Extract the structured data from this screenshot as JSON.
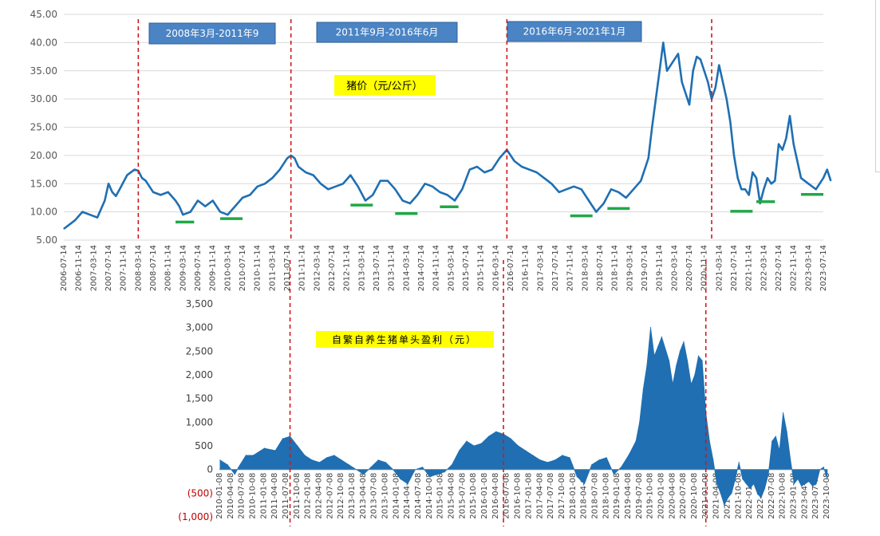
{
  "chart_data": [
    {
      "type": "line",
      "title": "",
      "label_box": "猪价（元/公斤）",
      "ylim": [
        5,
        45
      ],
      "yticks": [
        "5.00",
        "10.00",
        "15.00",
        "20.00",
        "25.00",
        "30.00",
        "35.00",
        "40.00",
        "45.00"
      ],
      "grid": true,
      "xticks": [
        "2006-07-14",
        "2006-11-14",
        "2007-03-14",
        "2007-07-14",
        "2007-11-14",
        "2008-03-14",
        "2008-07-14",
        "2008-11-14",
        "2009-03-14",
        "2009-07-14",
        "2009-11-14",
        "2010-03-14",
        "2010-07-14",
        "2010-11-14",
        "2011-03-14",
        "2011-07-14",
        "2011-11-14",
        "2012-03-14",
        "2012-07-14",
        "2012-11-14",
        "2013-03-14",
        "2013-07-14",
        "2013-11-14",
        "2014-03-14",
        "2014-07-14",
        "2014-11-14",
        "2015-03-14",
        "2015-07-14",
        "2015-11-14",
        "2016-03-14",
        "2016-07-14",
        "2016-11-14",
        "2017-03-14",
        "2017-07-14",
        "2017-11-14",
        "2018-03-14",
        "2018-07-14",
        "2018-11-14",
        "2019-03-14",
        "2019-07-14",
        "2019-11-14",
        "2020-03-14",
        "2020-07-14",
        "2020-11-14",
        "2021-03-14",
        "2021-07-14",
        "2021-11-14",
        "2022-03-14",
        "2022-07-14",
        "2022-11-14",
        "2023-03-14",
        "2023-07-14"
      ],
      "series": [
        {
          "color": "#1f6fb2",
          "x": [
            "2006-07",
            "2006-10",
            "2006-12",
            "2007-02",
            "2007-04",
            "2007-06",
            "2007-07",
            "2007-08",
            "2007-09",
            "2007-10",
            "2007-12",
            "2008-02",
            "2008-03",
            "2008-04",
            "2008-05",
            "2008-07",
            "2008-09",
            "2008-11",
            "2009-01",
            "2009-02",
            "2009-03",
            "2009-05",
            "2009-07",
            "2009-09",
            "2009-11",
            "2010-01",
            "2010-03",
            "2010-05",
            "2010-07",
            "2010-09",
            "2010-11",
            "2011-01",
            "2011-03",
            "2011-05",
            "2011-07",
            "2011-08",
            "2011-09",
            "2011-10",
            "2011-12",
            "2012-02",
            "2012-04",
            "2012-06",
            "2012-08",
            "2012-10",
            "2012-12",
            "2013-02",
            "2013-04",
            "2013-06",
            "2013-08",
            "2013-10",
            "2013-12",
            "2014-02",
            "2014-04",
            "2014-06",
            "2014-08",
            "2014-10",
            "2014-12",
            "2015-02",
            "2015-04",
            "2015-06",
            "2015-08",
            "2015-10",
            "2015-12",
            "2016-02",
            "2016-04",
            "2016-06",
            "2016-08",
            "2016-10",
            "2016-12",
            "2017-02",
            "2017-04",
            "2017-06",
            "2017-08",
            "2017-10",
            "2017-12",
            "2018-02",
            "2018-04",
            "2018-06",
            "2018-08",
            "2018-10",
            "2018-12",
            "2019-02",
            "2019-04",
            "2019-06",
            "2019-08",
            "2019-09",
            "2019-10",
            "2019-11",
            "2019-12",
            "2020-01",
            "2020-03",
            "2020-04",
            "2020-05",
            "2020-07",
            "2020-08",
            "2020-09",
            "2020-10",
            "2020-12",
            "2021-01",
            "2021-02",
            "2021-03",
            "2021-04",
            "2021-05",
            "2021-06",
            "2021-07",
            "2021-08",
            "2021-09",
            "2021-10",
            "2021-11",
            "2021-12",
            "2022-01",
            "2022-02",
            "2022-03",
            "2022-04",
            "2022-05",
            "2022-06",
            "2022-07",
            "2022-08",
            "2022-09",
            "2022-10",
            "2022-11",
            "2023-01",
            "2023-03",
            "2023-05",
            "2023-07",
            "2023-08",
            "2023-09"
          ],
          "values": [
            7,
            8.5,
            10,
            9.5,
            9,
            12,
            15,
            13.5,
            12.8,
            14,
            16.5,
            17.5,
            17.3,
            16,
            15.5,
            13.5,
            13,
            13.5,
            12,
            11,
            9.5,
            10,
            12,
            11,
            12,
            10,
            9.5,
            11,
            12.5,
            13,
            14.5,
            15,
            16,
            17.5,
            19.5,
            20,
            19.5,
            18,
            17,
            16.5,
            15,
            14,
            14.5,
            15,
            16.5,
            14.5,
            12,
            13,
            15.5,
            15.5,
            14,
            12,
            11.5,
            13,
            15,
            14.5,
            13.5,
            13,
            12,
            14,
            17.5,
            18,
            17,
            17.5,
            19.5,
            21,
            19,
            18,
            17.5,
            17,
            16,
            15,
            13.5,
            14,
            14.5,
            14,
            12,
            10,
            11.5,
            14,
            13.5,
            12.5,
            14,
            15.5,
            19.5,
            25,
            30,
            35,
            40,
            35,
            37,
            38,
            33,
            29,
            35,
            37.5,
            37,
            33,
            30,
            32,
            36,
            33,
            30,
            26,
            20,
            16,
            14,
            14,
            13,
            17,
            16,
            11.5,
            14,
            16,
            15,
            15.5,
            22,
            21,
            23,
            27,
            22,
            16,
            15,
            14,
            16,
            17.5,
            15.5
          ]
        }
      ],
      "annotations": [
        {
          "text": "2008年3月-2011年9",
          "type": "period-label"
        },
        {
          "text": "2011年9月-2016年6月",
          "type": "period-label"
        },
        {
          "text": "2016年6月-2021年1月",
          "type": "period-label"
        }
      ],
      "vertical_markers": [
        "2008-03",
        "2011-08",
        "2016-06",
        "2021-01"
      ],
      "trough_markers": [
        {
          "x": [
            "2009-01",
            "2009-06"
          ],
          "y": 8.2
        },
        {
          "x": [
            "2010-01",
            "2010-07"
          ],
          "y": 8.8
        },
        {
          "x": [
            "2012-12",
            "2013-06"
          ],
          "y": 11.2
        },
        {
          "x": [
            "2013-12",
            "2014-06"
          ],
          "y": 9.7
        },
        {
          "x": [
            "2014-12",
            "2015-05"
          ],
          "y": 10.9
        },
        {
          "x": [
            "2017-11",
            "2018-05"
          ],
          "y": 9.3
        },
        {
          "x": [
            "2018-09",
            "2019-03"
          ],
          "y": 10.6
        },
        {
          "x": [
            "2021-06",
            "2021-12"
          ],
          "y": 10.1
        },
        {
          "x": [
            "2022-01",
            "2022-06"
          ],
          "y": 11.8
        },
        {
          "x": [
            "2023-01",
            "2023-07"
          ],
          "y": 13.1
        }
      ]
    },
    {
      "type": "area",
      "title": "",
      "label_box": "自繁自养生猪单头盈利（元）",
      "ylim": [
        -1000,
        3500
      ],
      "yticks": [
        "(1,000)",
        "(500)",
        "0",
        "500",
        "1,000",
        "1,500",
        "2,000",
        "2,500",
        "3,000",
        "3,500"
      ],
      "grid": false,
      "xticks": [
        "2010-01-08",
        "2010-04-08",
        "2010-07-08",
        "2010-10-08",
        "2011-01-08",
        "2011-04-08",
        "2011-07-08",
        "2011-10-08",
        "2012-01-08",
        "2012-04-08",
        "2012-07-08",
        "2012-10-08",
        "2013-01-08",
        "2013-04-08",
        "2013-07-08",
        "2013-10-08",
        "2014-01-08",
        "2014-04-08",
        "2014-07-08",
        "2014-10-08",
        "2015-01-08",
        "2015-04-08",
        "2015-07-08",
        "2015-10-08",
        "2016-01-08",
        "2016-04-08",
        "2016-07-08",
        "2016-10-08",
        "2017-01-08",
        "2017-04-08",
        "2017-07-08",
        "2017-10-08",
        "2018-01-08",
        "2018-04-08",
        "2018-07-08",
        "2018-10-08",
        "2019-01-08",
        "2019-04-08",
        "2019-07-08",
        "2019-10-08",
        "2020-01-08",
        "2020-04-08",
        "2020-07-08",
        "2020-10-08",
        "2021-01-08",
        "2021-04-08",
        "2021-07-08",
        "2021-10-08",
        "2022-01-08",
        "2022-04-08",
        "2022-07-08",
        "2022-10-08",
        "2023-01-08",
        "2023-04-08",
        "2023-07-08",
        "2023-10-08"
      ],
      "series": [
        {
          "color": "#1f6fb2",
          "x": [
            "2010-01",
            "2010-03",
            "2010-05",
            "2010-06",
            "2010-08",
            "2010-10",
            "2011-01",
            "2011-04",
            "2011-06",
            "2011-08",
            "2011-10",
            "2011-12",
            "2012-02",
            "2012-04",
            "2012-06",
            "2012-08",
            "2012-10",
            "2012-12",
            "2013-02",
            "2013-04",
            "2013-06",
            "2013-08",
            "2013-10",
            "2013-12",
            "2014-02",
            "2014-04",
            "2014-06",
            "2014-08",
            "2014-10",
            "2014-12",
            "2015-02",
            "2015-04",
            "2015-06",
            "2015-08",
            "2015-10",
            "2015-12",
            "2016-02",
            "2016-04",
            "2016-06",
            "2016-08",
            "2016-10",
            "2016-12",
            "2017-02",
            "2017-04",
            "2017-06",
            "2017-08",
            "2017-10",
            "2017-12",
            "2018-02",
            "2018-04",
            "2018-06",
            "2018-08",
            "2018-10",
            "2018-12",
            "2019-02",
            "2019-04",
            "2019-06",
            "2019-07",
            "2019-08",
            "2019-09",
            "2019-10",
            "2019-11",
            "2019-12",
            "2020-01",
            "2020-03",
            "2020-04",
            "2020-05",
            "2020-06",
            "2020-07",
            "2020-08",
            "2020-09",
            "2020-10",
            "2020-11",
            "2020-12",
            "2021-01",
            "2021-02",
            "2021-03",
            "2021-04",
            "2021-05",
            "2021-06",
            "2021-07",
            "2021-08",
            "2021-09",
            "2021-10",
            "2021-11",
            "2021-12",
            "2022-01",
            "2022-02",
            "2022-03",
            "2022-04",
            "2022-05",
            "2022-06",
            "2022-07",
            "2022-08",
            "2022-09",
            "2022-10",
            "2022-11",
            "2022-12",
            "2023-01",
            "2023-02",
            "2023-03",
            "2023-04",
            "2023-05",
            "2023-06",
            "2023-07",
            "2023-08",
            "2023-09",
            "2023-10"
          ],
          "values": [
            200,
            100,
            -100,
            50,
            300,
            300,
            450,
            400,
            650,
            700,
            500,
            300,
            200,
            150,
            250,
            300,
            200,
            100,
            0,
            -100,
            50,
            200,
            150,
            0,
            -200,
            -300,
            0,
            50,
            -150,
            -100,
            -50,
            100,
            400,
            600,
            500,
            550,
            700,
            800,
            750,
            650,
            500,
            400,
            300,
            200,
            150,
            200,
            300,
            250,
            -150,
            -300,
            100,
            200,
            250,
            -100,
            50,
            300,
            600,
            1000,
            1700,
            2200,
            3000,
            2400,
            2600,
            2800,
            2300,
            1800,
            2200,
            2500,
            2700,
            2300,
            1800,
            2000,
            2400,
            2300,
            1200,
            600,
            200,
            -300,
            -500,
            -750,
            -600,
            -500,
            -200,
            150,
            -200,
            -300,
            -400,
            -300,
            -500,
            -600,
            -400,
            -100,
            600,
            700,
            400,
            1200,
            800,
            200,
            -300,
            -200,
            -350,
            -300,
            -250,
            -350,
            -300,
            0,
            50,
            -200
          ]
        }
      ],
      "vertical_markers": [
        "2011-08",
        "2016-06",
        "2021-01"
      ]
    }
  ]
}
